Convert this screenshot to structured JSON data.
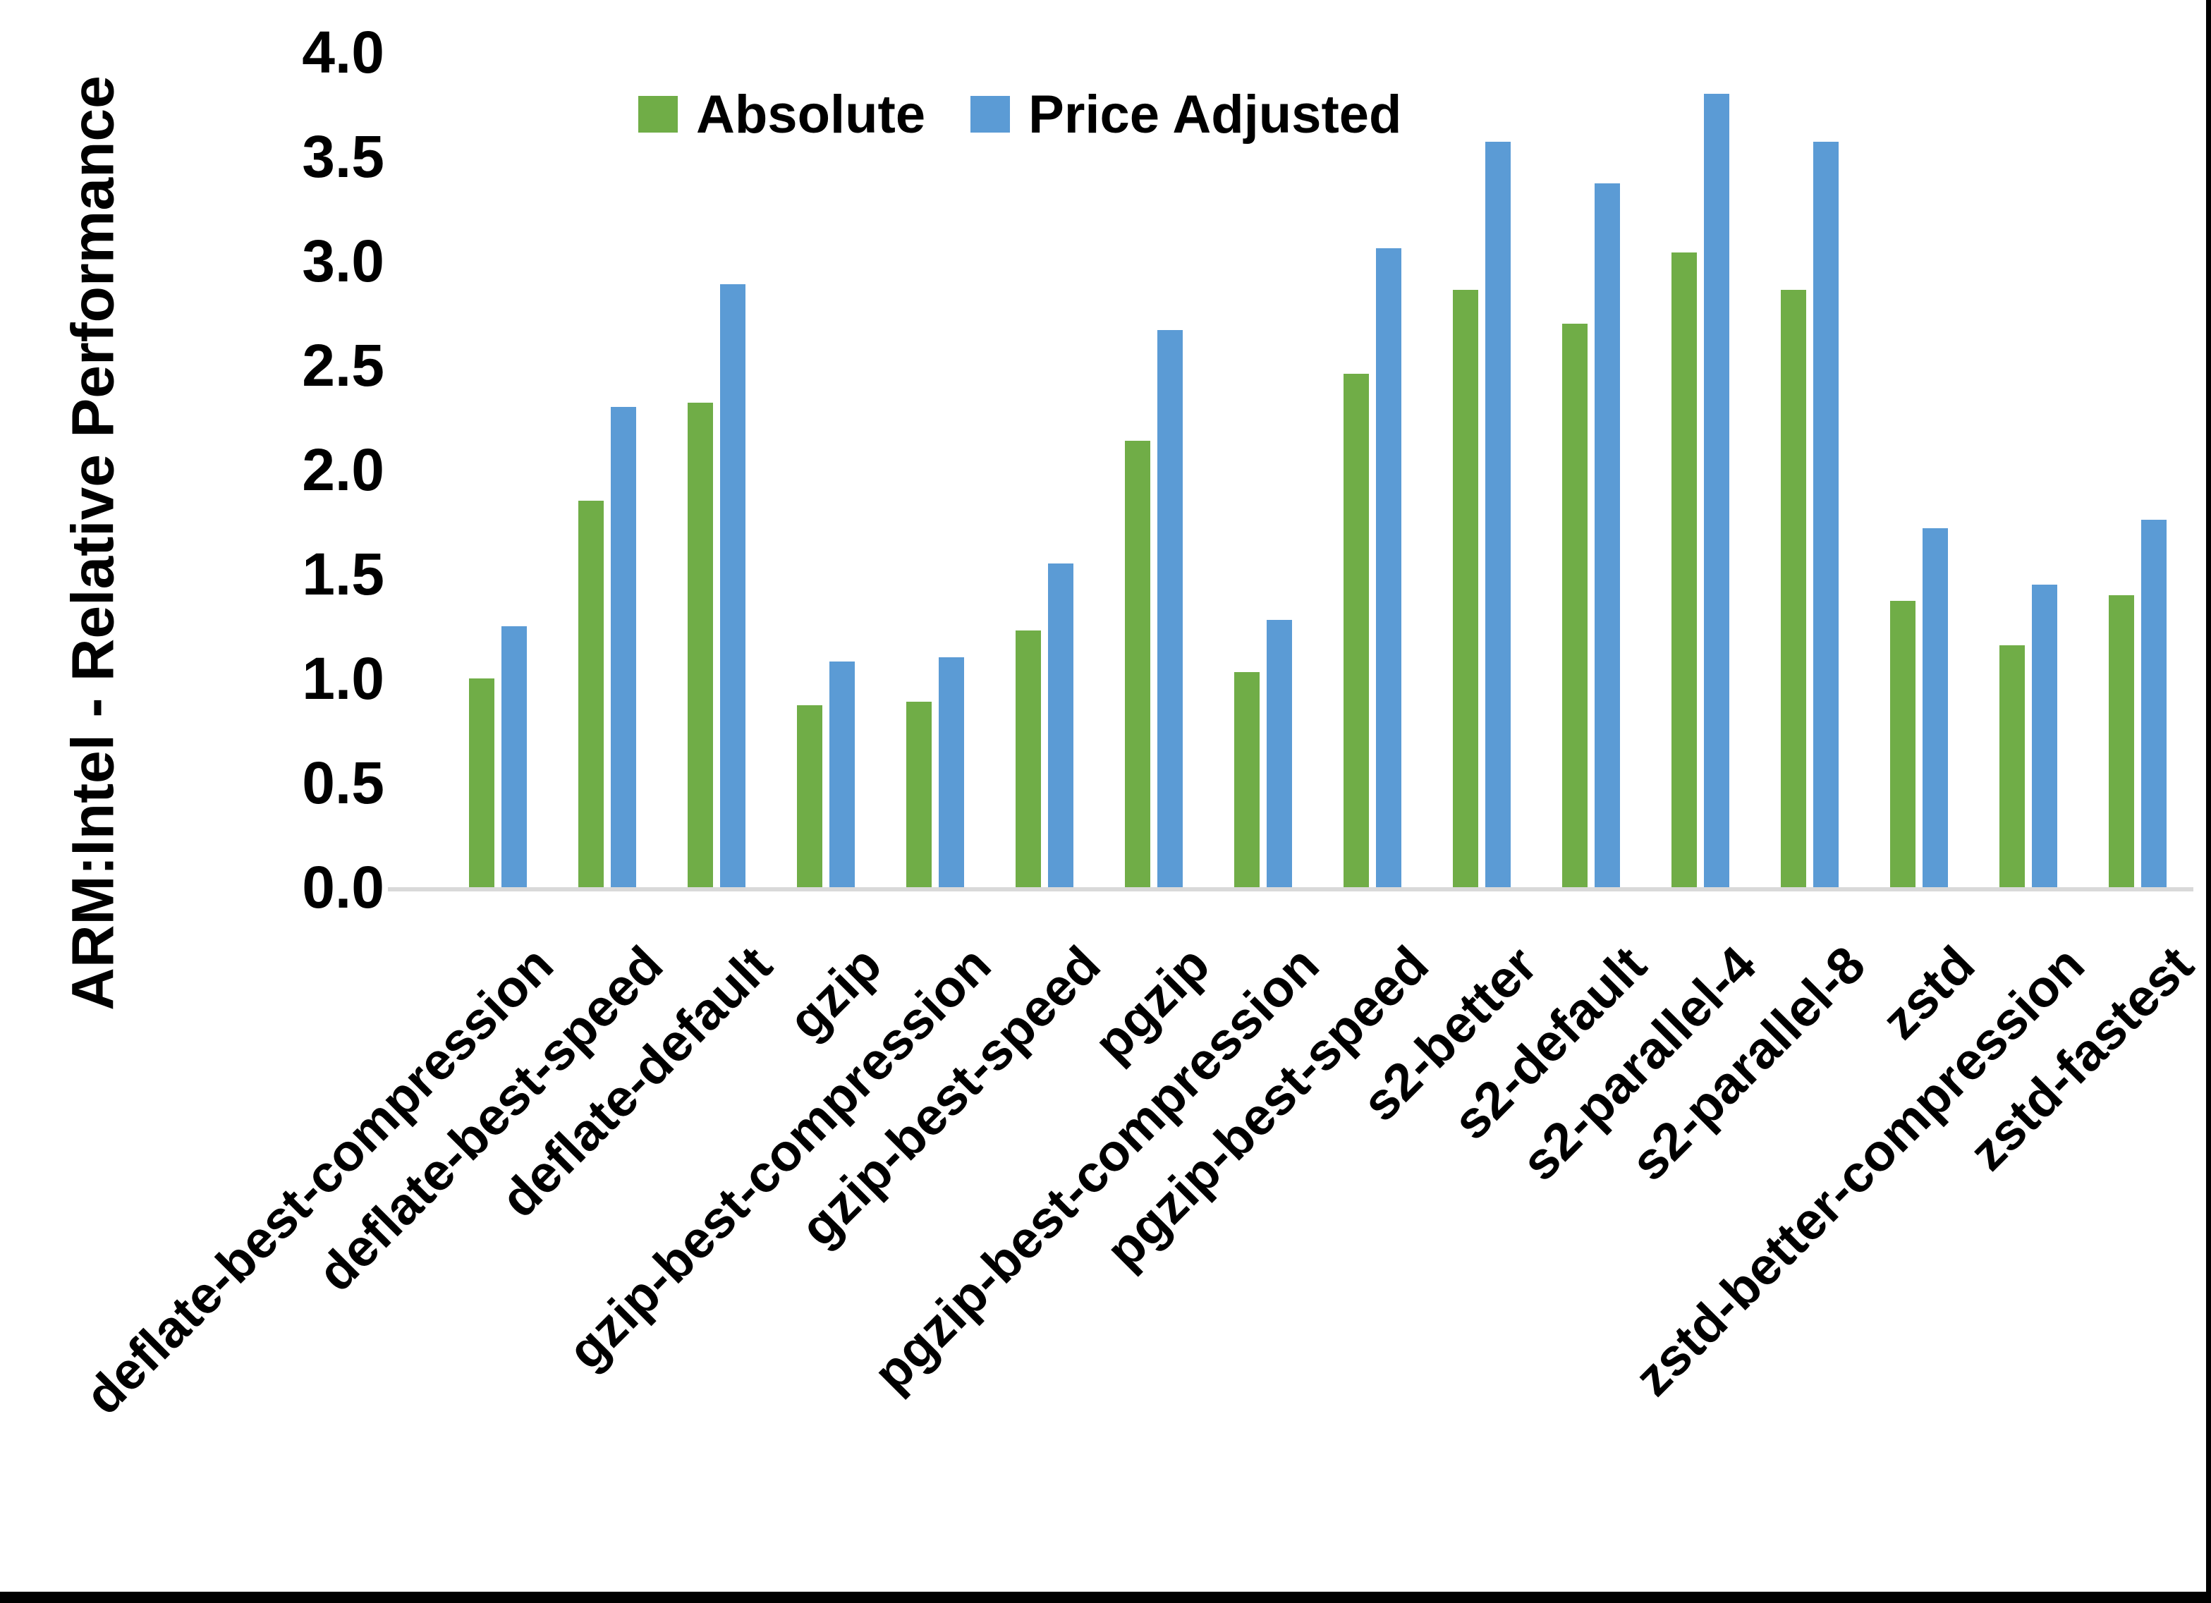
{
  "chart_data": {
    "type": "bar",
    "title": "",
    "xlabel": "",
    "ylabel": "ARM:Intel - Relative Performance",
    "ylim": [
      0.0,
      4.0
    ],
    "ytick_step": 0.5,
    "ytick_labels": [
      "0.0",
      "0.5",
      "1.0",
      "1.5",
      "2.0",
      "2.5",
      "3.0",
      "3.5",
      "4.0"
    ],
    "grid": false,
    "legend_position": "top-center",
    "categories": [
      "deflate-best-compression",
      "deflate-best-speed",
      "deflate-default",
      "gzip",
      "gzip-best-compression",
      "gzip-best-speed",
      "pgzip",
      "pgzip-best-compression",
      "pgzip-best-speed",
      "s2-better",
      "s2-default",
      "s2-parallel-4",
      "s2-parallel-8",
      "zstd",
      "zstd-better-compression",
      "zstd-fastest"
    ],
    "series": [
      {
        "name": "Absolute",
        "color": "#70AD47",
        "values": [
          1.0,
          1.85,
          2.32,
          0.87,
          0.89,
          1.23,
          2.14,
          1.03,
          2.46,
          2.86,
          2.7,
          3.04,
          2.86,
          1.37,
          1.16,
          1.4
        ]
      },
      {
        "name": "Price Adjusted",
        "color": "#5B9BD5",
        "values": [
          1.25,
          2.3,
          2.89,
          1.08,
          1.1,
          1.55,
          2.67,
          1.28,
          3.06,
          3.57,
          3.37,
          3.8,
          3.57,
          1.72,
          1.45,
          1.76
        ]
      }
    ]
  },
  "colors": {
    "background": "#FFFFFF",
    "axis_line": "#D9D9D9",
    "text": "#000000",
    "window_border": "#000000"
  }
}
